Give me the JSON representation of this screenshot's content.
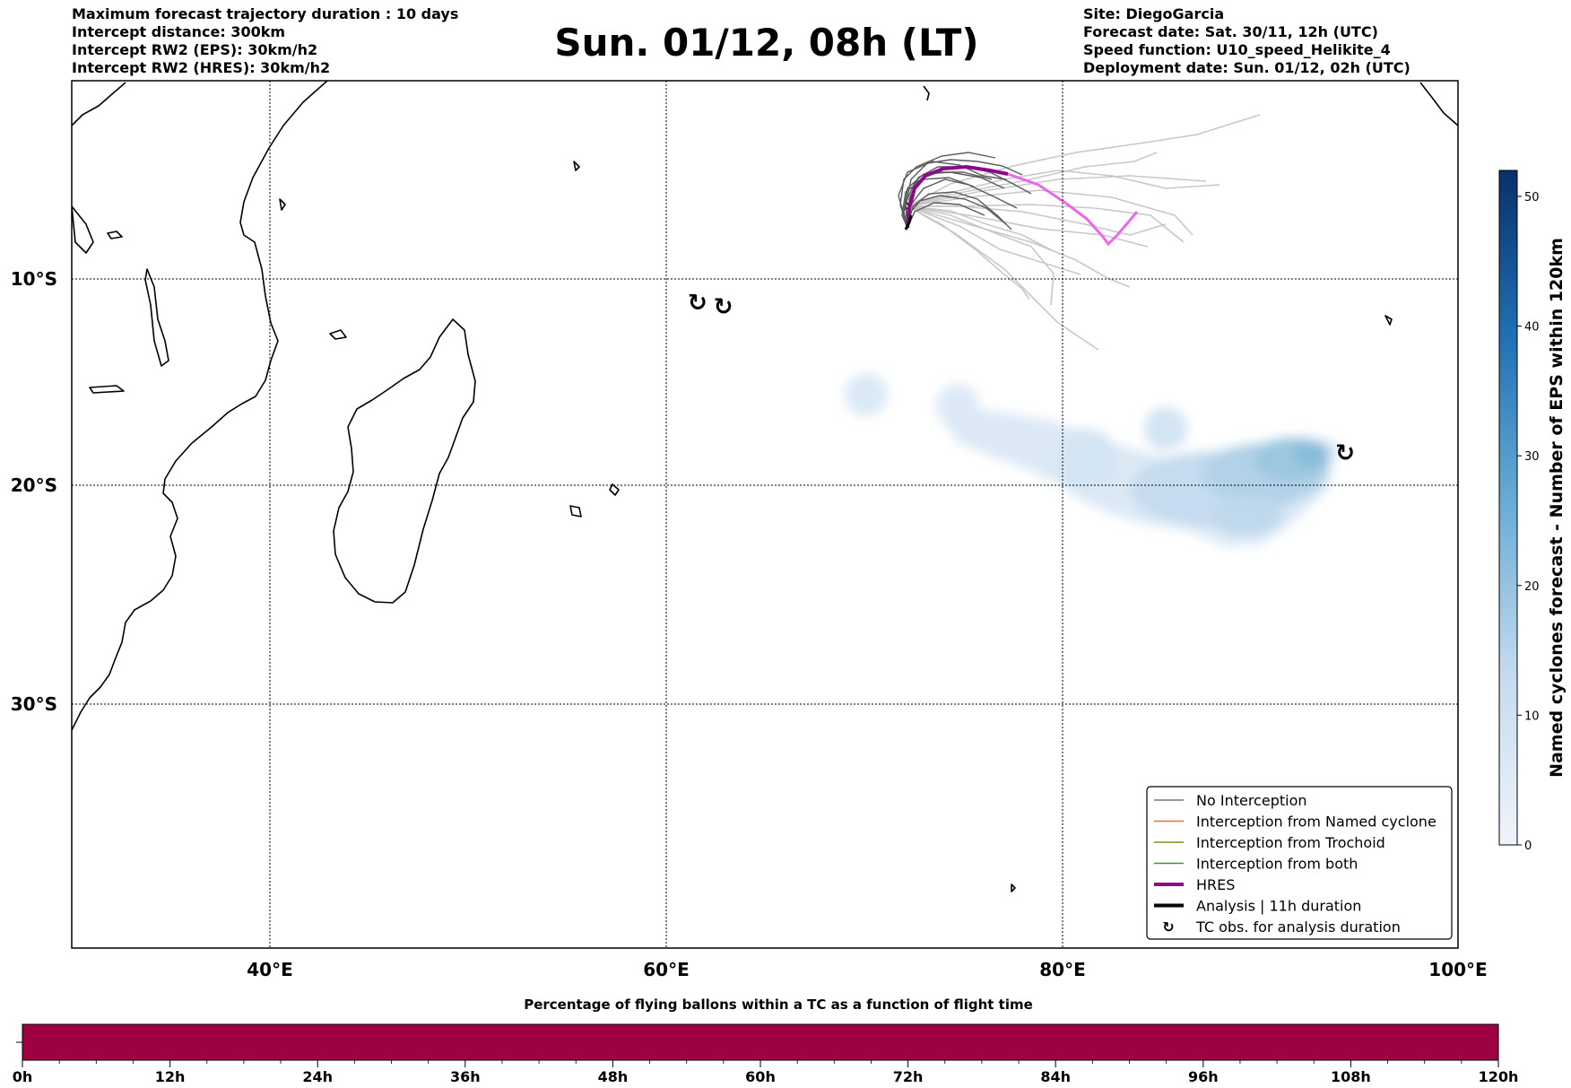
{
  "header": {
    "left_lines": [
      "Maximum forecast trajectory duration : 10 days",
      "Intercept distance: 300km",
      "Intercept RW2 (EPS):  30km/h2",
      "Intercept RW2 (HRES): 30km/h2"
    ],
    "title": "Sun. 01/12, 08h (LT)",
    "right_lines": [
      "Site: DiegoGarcia",
      "Forecast date: Sat. 30/11, 12h (UTC)",
      "Speed function: U10_speed_Helikite_4",
      "Deployment date: Sun. 01/12, 02h (UTC)"
    ]
  },
  "map": {
    "lon_ticks": [
      "40°E",
      "60°E",
      "80°E",
      "100°E"
    ],
    "lat_ticks": [
      "10°S",
      "20°S",
      "30°S"
    ],
    "cyclone_symbols": [
      {
        "lon": 61.6,
        "lat": -11.2
      },
      {
        "lon": 62.9,
        "lat": -11.4
      },
      {
        "lon": 94.3,
        "lat": -18.5
      }
    ],
    "colors": {
      "hres": "#8b0a8b",
      "hres_late": "#ee66ee",
      "eps_near": "#555555",
      "eps_far": "#c8c8c8",
      "density": "#4a9ac8"
    }
  },
  "legend": {
    "items": [
      {
        "label": "No Interception",
        "color": "#777777",
        "style": "thin"
      },
      {
        "label": "Interception from Named cyclone",
        "color": "#ff6633",
        "style": "thin"
      },
      {
        "label": "Interception from Trochoid",
        "color": "#8c8c1a",
        "style": "thin"
      },
      {
        "label": "Interception from both",
        "color": "#2aa02a",
        "style": "thin"
      },
      {
        "label": "HRES",
        "color": "#8b0a8b",
        "style": "thick"
      },
      {
        "label": "Analysis | 11h duration",
        "color": "#000000",
        "style": "thick"
      },
      {
        "label": "TC obs. for analysis duration",
        "color": "#000000",
        "style": "symbol"
      }
    ]
  },
  "colorbar_right": {
    "label": "Named cyclones forecast - Number of EPS within 120km",
    "ticks": [
      "0",
      "10",
      "20",
      "30",
      "40",
      "50"
    ],
    "min": 0,
    "max": 52,
    "color_low": "#e8f1fa",
    "color_high": "#08306b"
  },
  "colorbar_bottom": {
    "title": "Percentage of flying ballons within a TC as a function of flight time",
    "ticks": [
      "0h",
      "12h",
      "24h",
      "36h",
      "48h",
      "60h",
      "72h",
      "84h",
      "96h",
      "108h",
      "120h"
    ],
    "fill_color": "#9e0142"
  }
}
